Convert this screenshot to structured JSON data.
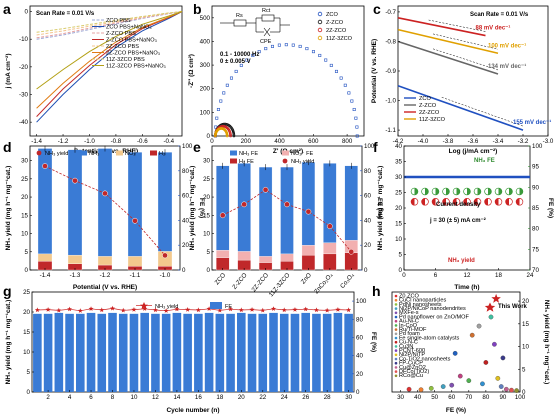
{
  "panels": {
    "a": {
      "letter": "a",
      "scan_rate": "Scan Rate = 0.01 V/s",
      "xlabel": "Potential (V vs. RHE)",
      "ylabel": "j (mA cm⁻²)",
      "xticks": [
        "-1.4",
        "-1.2",
        "-1.0",
        "-0.8",
        "-0.6",
        "-0.4"
      ],
      "yticks": [
        "0",
        "-10",
        "-20",
        "-30",
        "-40"
      ],
      "legend": [
        "ZCO PBS",
        "ZCO PBS+NaNO₃",
        "Z-ZCO PBS",
        "Z-ZCO PBS+NaNO₃",
        "2Z-ZCO PBS",
        "2Z-ZCO PBS+NaNO₃",
        "11Z-3ZCO PBS",
        "11Z-3ZCO PBS+NaNO₃"
      ]
    },
    "b": {
      "letter": "b",
      "xlabel": "Z' (Ω cm²)",
      "ylabel": "-Z'' (Ω cm²)",
      "xticks": [
        "0",
        "200",
        "400",
        "600",
        "800"
      ],
      "yticks": [
        "0",
        "100",
        "200",
        "300",
        "400",
        "500"
      ],
      "circuit": {
        "r1": "Rs",
        "r2": "Rct",
        "c": "CPE"
      },
      "conditions": [
        "0.1 - 10000 Hz",
        "0 ± 0.005 V"
      ],
      "legend": [
        "ZCO",
        "Z-ZCO",
        "2Z-ZCO",
        "11Z-3ZCO"
      ]
    },
    "c": {
      "letter": "c",
      "scan_rate": "Scan Rate = 0.01 V/s",
      "xlabel": "Log (j/mA cm⁻²)",
      "ylabel": "Potential (V vs. RHE)",
      "xticks": [
        "-4.2",
        "-4.0",
        "-3.8",
        "-3.6",
        "-3.4",
        "-3.2",
        "-3.0"
      ],
      "yticks": [
        "-0.7",
        "-0.8",
        "-0.9",
        "-1.0",
        "-1.1"
      ],
      "tafel": [
        "88 mV dec⁻¹",
        "100 mV dec⁻¹",
        "134 mV dec⁻¹",
        "155 mV dec⁻¹"
      ],
      "legend": [
        "ZCO",
        "Z-ZCO",
        "2Z-ZCO",
        "11Z-3ZCO"
      ]
    },
    "d": {
      "letter": "d",
      "xlabel": "Potential (V vs. RHE)",
      "ylabel": "NH₃ yield (mg h⁻¹ mg⁻¹cat.)",
      "y2label": "FE (%)",
      "xticks": [
        "-1.4",
        "-1.3",
        "-1.2",
        "-1.1",
        "-1.0"
      ],
      "yticks": [
        "0",
        "5",
        "10",
        "15",
        "20",
        "25",
        "30"
      ],
      "y2ticks": [
        "0",
        "20",
        "40",
        "60",
        "80",
        "100"
      ],
      "legend": [
        "NH₃ yield",
        "NH₃",
        "NO₂⁻",
        "H₂"
      ]
    },
    "e": {
      "letter": "e",
      "xlabel": "",
      "ylabel": "NH₃ yield (mg h⁻¹ mg⁻¹cat.)",
      "y2label": "FE (%)",
      "xticks": [
        "ZCO",
        "Z-ZCO",
        "2Z-ZCO",
        "11Z-3ZCO",
        "ZnO",
        "ZnCo₂O₄",
        "Co₃O₄"
      ],
      "yticks": [
        "0",
        "5",
        "10",
        "15",
        "20",
        "25",
        "30"
      ],
      "y2ticks": [
        "0",
        "20",
        "40",
        "60",
        "80",
        "100"
      ],
      "legend": [
        "NH₃ FE",
        "NO₂⁻ FE",
        "H₂ FE",
        "NH₃ yield"
      ]
    },
    "f": {
      "letter": "f",
      "xlabel": "Time (h)",
      "ylabel": "NH₃ yield (mg h⁻¹ mg⁻¹cat.)",
      "y2label": "FE (%)",
      "xticks": [
        "0",
        "6",
        "12",
        "18",
        "24"
      ],
      "yticks": [
        "0",
        "5",
        "10",
        "15",
        "20",
        "25",
        "30",
        "35",
        "40"
      ],
      "y2ticks": [
        "70",
        "75",
        "80",
        "85",
        "90",
        "95",
        "100"
      ],
      "labels": [
        "NH₃ FE",
        "Current density",
        "j = 30 (± 5) mA cm⁻²",
        "NH₃ yield"
      ]
    },
    "g": {
      "letter": "g",
      "xlabel": "Cycle number (n)",
      "ylabel": "NH₃ yield (mg h⁻¹ mg⁻¹cat.)",
      "y2label": "FE (%)",
      "xticks": [
        "2",
        "4",
        "6",
        "8",
        "10",
        "12",
        "14",
        "16",
        "18",
        "20",
        "22",
        "24",
        "26",
        "28",
        "30"
      ],
      "yticks": [
        "0",
        "5",
        "10",
        "15",
        "20",
        "25"
      ],
      "y2ticks": [
        "0",
        "20",
        "40",
        "60",
        "80",
        "100"
      ],
      "legend": [
        "NH₃ yield",
        "FE"
      ]
    },
    "h": {
      "letter": "h",
      "xlabel": "FE (%)",
      "ylabel": "NH₃ yield (mg h⁻¹ mg⁻¹cat.)",
      "xticks": [
        "30",
        "40",
        "50",
        "60",
        "70",
        "80",
        "90",
        "100"
      ],
      "yticks": [
        "0",
        "5",
        "10",
        "15",
        "20"
      ],
      "this_work": "This Work",
      "legend": [
        "Z0.ZCO",
        "CuCl nanoparticles",
        "PdNi nanosheets",
        "Ni2P/NiCoP nanodendrites",
        "MXFe-s",
        "Pd nanoflower on ZnO/MOF",
        "Au-Ni-C",
        "In-CoO",
        "Ru/Ti-MOF",
        "Pd foam",
        "Fe single-atom catalysts",
        "Cu-N-C",
        "Cu3N",
        "PCNT-600",
        "Ni2P/NiTP",
        "Co-TiO2 nanosheets",
        "FP-CuCP",
        "Cu@ZnO2",
        "DFCo(TiO2)",
        "RCo@Cu"
      ]
    }
  },
  "chart_data": [
    {
      "panel": "a",
      "type": "line",
      "xlabel": "Potential (V vs. RHE)",
      "ylabel": "j (mA cm⁻²)",
      "xlim": [
        -1.45,
        -0.3
      ],
      "ylim": [
        -45,
        2
      ],
      "series": [
        {
          "name": "ZCO PBS",
          "color": "#9ea9d6",
          "x": [
            -1.4,
            -1.2,
            -1.0,
            -0.8,
            -0.6,
            -0.4,
            -0.3
          ],
          "y": [
            -10,
            -8.5,
            -6.5,
            -4.5,
            -2.5,
            -0.8,
            0
          ]
        },
        {
          "name": "ZCO PBS+NaNO₃",
          "color": "#1f4fb3",
          "x": [
            -1.4,
            -1.2,
            -1.0,
            -0.8,
            -0.6,
            -0.4,
            -0.3
          ],
          "y": [
            -40,
            -30,
            -21,
            -13,
            -7,
            -2.5,
            0
          ]
        },
        {
          "name": "Z-ZCO PBS",
          "color": "#e6a3a3",
          "x": [
            -1.4,
            -1.2,
            -1.0,
            -0.8,
            -0.6,
            -0.4,
            -0.3
          ],
          "y": [
            -9.5,
            -8,
            -6,
            -4.2,
            -2.3,
            -0.7,
            0
          ]
        },
        {
          "name": "Z-ZCO PBS+NaNO₃",
          "color": "#c22a2a",
          "x": [
            -1.4,
            -1.2,
            -1.0,
            -0.8,
            -0.6,
            -0.4,
            -0.3
          ],
          "y": [
            -38,
            -28,
            -19.5,
            -12,
            -6.2,
            -2.2,
            0
          ]
        },
        {
          "name": "2Z-ZCO PBS",
          "color": "#f3c48d",
          "x": [
            -1.4,
            -1.2,
            -1.0,
            -0.8,
            -0.6,
            -0.4,
            -0.3
          ],
          "y": [
            -8.5,
            -7,
            -5.3,
            -3.7,
            -2,
            -0.6,
            0
          ]
        },
        {
          "name": "2Z-ZCO PBS+NaNO₃",
          "color": "#e07b12",
          "x": [
            -1.4,
            -1.2,
            -1.0,
            -0.8,
            -0.6,
            -0.4,
            -0.3
          ],
          "y": [
            -35,
            -26,
            -18,
            -11,
            -5.8,
            -2,
            0
          ]
        },
        {
          "name": "11Z-3ZCO PBS",
          "color": "#d9cc6e",
          "x": [
            -1.4,
            -1.2,
            -1.0,
            -0.8,
            -0.6,
            -0.4,
            -0.3
          ],
          "y": [
            -7.5,
            -6.2,
            -4.7,
            -3.2,
            -1.8,
            -0.5,
            0
          ]
        },
        {
          "name": "11Z-3ZCO PBS+NaNO₃",
          "color": "#b3a014",
          "x": [
            -1.4,
            -1.2,
            -1.0,
            -0.8,
            -0.6,
            -0.4,
            -0.3
          ],
          "y": [
            -28,
            -21,
            -14.5,
            -9,
            -4.6,
            -1.6,
            0
          ]
        }
      ]
    },
    {
      "panel": "b",
      "type": "scatter",
      "xlabel": "Z' (Ω cm²)",
      "ylabel": "-Z'' (Ω cm²)",
      "xlim": [
        0,
        900
      ],
      "ylim": [
        0,
        550
      ],
      "series": [
        {
          "name": "ZCO",
          "color": "#2050c0",
          "center": 440,
          "radius": 420
        },
        {
          "name": "Z-ZCO",
          "color": "#111111",
          "center": 75,
          "radius": 55
        },
        {
          "name": "2Z-ZCO",
          "color": "#cc2222",
          "center": 65,
          "radius": 45
        },
        {
          "name": "11Z-3ZCO",
          "color": "#e0a000",
          "center": 55,
          "radius": 35
        }
      ]
    },
    {
      "panel": "c",
      "type": "line",
      "xlabel": "Log (j/mA cm⁻²)",
      "ylabel": "Potential (V vs. RHE)",
      "xlim": [
        -4.2,
        -3.0
      ],
      "ylim": [
        -1.12,
        -0.68
      ],
      "series": [
        {
          "name": "ZCO",
          "color": "#2050c0",
          "slope": "155 mV dec⁻¹",
          "x": [
            -4.2,
            -3.2
          ],
          "y": [
            -0.95,
            -1.1
          ]
        },
        {
          "name": "Z-ZCO",
          "color": "#666666",
          "slope": "134 mV dec⁻¹",
          "x": [
            -4.2,
            -3.4
          ],
          "y": [
            -0.8,
            -0.91
          ]
        },
        {
          "name": "2Z-ZCO",
          "color": "#cc2222",
          "slope": "88 mV dec⁻¹",
          "x": [
            -4.2,
            -3.5
          ],
          "y": [
            -0.72,
            -0.78
          ]
        },
        {
          "name": "11Z-3ZCO",
          "color": "#e0a000",
          "slope": "100 mV dec⁻¹",
          "x": [
            -4.2,
            -3.4
          ],
          "y": [
            -0.76,
            -0.84
          ]
        }
      ]
    },
    {
      "panel": "d",
      "type": "bar",
      "xlabel": "Potential (V vs. RHE)",
      "ylabel": "NH₃ yield (mg h⁻¹ mg⁻¹cat.)",
      "categories": [
        "-1.4",
        "-1.3",
        "-1.2",
        "-1.1",
        "-1.0"
      ],
      "ylim": [
        0,
        34
      ],
      "y2lim": [
        0,
        100
      ],
      "series": [
        {
          "name": "H₂",
          "axis": "FE",
          "color": "#c0282a",
          "values": [
            7,
            5,
            4,
            3,
            3
          ]
        },
        {
          "name": "NO₂⁻",
          "axis": "FE",
          "color": "#f3c98d",
          "values": [
            6,
            7,
            7,
            8,
            12
          ]
        },
        {
          "name": "NH₃",
          "axis": "FE",
          "color": "#3a7bd5",
          "values": [
            85,
            85,
            87,
            84,
            80
          ]
        },
        {
          "name": "NH₃ yield",
          "axis": "yield",
          "color": "#c0282a",
          "values": [
            28.5,
            24.5,
            21,
            13.5,
            4
          ]
        }
      ]
    },
    {
      "panel": "e",
      "type": "bar",
      "xlabel": "",
      "ylabel": "NH₃ yield (mg h⁻¹ mg⁻¹cat.)",
      "categories": [
        "ZCO",
        "Z-ZCO",
        "2Z-ZCO",
        "11Z-3ZCO",
        "ZnO",
        "ZnCo₂O₄",
        "Co₃O₄"
      ],
      "ylim": [
        0,
        34
      ],
      "y2lim": [
        0,
        100
      ],
      "series": [
        {
          "name": "H₂ FE",
          "axis": "FE",
          "color": "#c0282a",
          "values": [
            10,
            8,
            6,
            7,
            12,
            13,
            14
          ]
        },
        {
          "name": "NO₂⁻ FE",
          "axis": "FE",
          "color": "#f2b0b0",
          "values": [
            6,
            7,
            5,
            6,
            8,
            9,
            10
          ]
        },
        {
          "name": "NH₃ FE",
          "axis": "FE",
          "color": "#3a7bd5",
          "values": [
            68,
            71,
            72,
            70,
            67,
            64,
            60
          ]
        },
        {
          "name": "NH₃ yield",
          "axis": "yield",
          "color": "#c0282a",
          "values": [
            15,
            18,
            22,
            18,
            16,
            12,
            5
          ]
        }
      ]
    },
    {
      "panel": "f",
      "type": "scatter",
      "xlabel": "Time (h)",
      "ylabel": "NH₃ yield (mg h⁻¹ mg⁻¹cat.)",
      "xlim": [
        0,
        24
      ],
      "ylim": [
        0,
        40
      ],
      "y2lim": [
        70,
        100
      ],
      "series": [
        {
          "name": "NH₃ FE",
          "axis": "FE",
          "color": "#3a9a3a",
          "x": [
            2,
            4,
            6,
            8,
            10,
            12,
            14,
            16,
            18,
            20,
            22
          ],
          "y": [
            89,
            89,
            89,
            89,
            89,
            89,
            89,
            89,
            89,
            89,
            89
          ]
        },
        {
          "name": "Current density",
          "axis": "yield",
          "color": "#2050c0",
          "x": [
            0,
            24
          ],
          "y": [
            30,
            30
          ]
        },
        {
          "name": "NH₃ yield",
          "axis": "yield",
          "color": "#cc2222",
          "x": [
            2,
            4,
            6,
            8,
            10,
            12,
            14,
            16,
            18,
            20,
            22
          ],
          "y": [
            22,
            22,
            22,
            22,
            22,
            22,
            22,
            22,
            22,
            22,
            22
          ]
        }
      ]
    },
    {
      "panel": "g",
      "type": "bar",
      "xlabel": "Cycle number (n)",
      "ylabel": "NH₃ yield (mg h⁻¹ mg⁻¹cat.)",
      "categories": [
        "1",
        "2",
        "3",
        "4",
        "5",
        "6",
        "7",
        "8",
        "9",
        "10",
        "11",
        "12",
        "13",
        "14",
        "15",
        "16",
        "17",
        "18",
        "19",
        "20",
        "21",
        "22",
        "23",
        "24",
        "25",
        "26",
        "27",
        "28",
        "29",
        "30"
      ],
      "ylim": [
        0,
        25
      ],
      "y2lim": [
        0,
        110
      ],
      "series": [
        {
          "name": "FE",
          "axis": "FE",
          "color": "#3a7bd5",
          "values": [
            86,
            86,
            87,
            86,
            86,
            87,
            86,
            87,
            86,
            86,
            87,
            86,
            86,
            87,
            86,
            86,
            87,
            86,
            86,
            87,
            86,
            86,
            87,
            86,
            86,
            87,
            86,
            86,
            87,
            86
          ]
        },
        {
          "name": "NH₃ yield",
          "axis": "yield",
          "color": "#cc2222",
          "values": [
            20.5,
            20.6,
            20.4,
            20.7,
            20.3,
            20.8,
            20.5,
            20.9,
            20.4,
            20.6,
            20.8,
            20.5,
            20.3,
            20.7,
            20.6,
            20.5,
            20.8,
            20.4,
            20.7,
            20.5,
            20.6,
            20.4,
            20.8,
            20.5,
            20.6,
            20.7,
            20.5,
            20.4,
            20.6,
            20.5
          ]
        }
      ]
    },
    {
      "panel": "h",
      "type": "scatter",
      "xlabel": "FE (%)",
      "ylabel": "NH₃ yield (mg h⁻¹ mg⁻¹cat.)",
      "xlim": [
        25,
        100
      ],
      "ylim": [
        0,
        22
      ],
      "series": [
        {
          "name": "Literature catalysts",
          "points": [
            [
              35,
              0.6,
              "#e03030"
            ],
            [
              42,
              0.5,
              "#f08030"
            ],
            [
              48,
              0.8,
              "#90c040"
            ],
            [
              55,
              1.2,
              "#40a0c0"
            ],
            [
              60,
              1.5,
              "#8050b0"
            ],
            [
              62,
              8.5,
              "#2060c0"
            ],
            [
              65,
              3.5,
              "#c04080"
            ],
            [
              70,
              2.5,
              "#50b050"
            ],
            [
              72,
              12.5,
              "#d07030"
            ],
            [
              76,
              14.5,
              "#a0a0a0"
            ],
            [
              78,
              1.8,
              "#3090d0"
            ],
            [
              80,
              6.5,
              "#c02020"
            ],
            [
              83,
              16.5,
              "#40c0a0"
            ],
            [
              85,
              10.5,
              "#8040c0"
            ],
            [
              87,
              3,
              "#e0c020"
            ],
            [
              89,
              1.2,
              "#6080c0"
            ],
            [
              90,
              7.5,
              "#3a3a8a"
            ],
            [
              92,
              0.6,
              "#c06090"
            ],
            [
              95,
              0.4,
              "#e05050"
            ],
            [
              98,
              0.3,
              "#909030"
            ]
          ]
        },
        {
          "name": "This Work",
          "color": "#cc2222",
          "points": [
            [
              86,
              20.5
            ]
          ]
        }
      ]
    }
  ]
}
